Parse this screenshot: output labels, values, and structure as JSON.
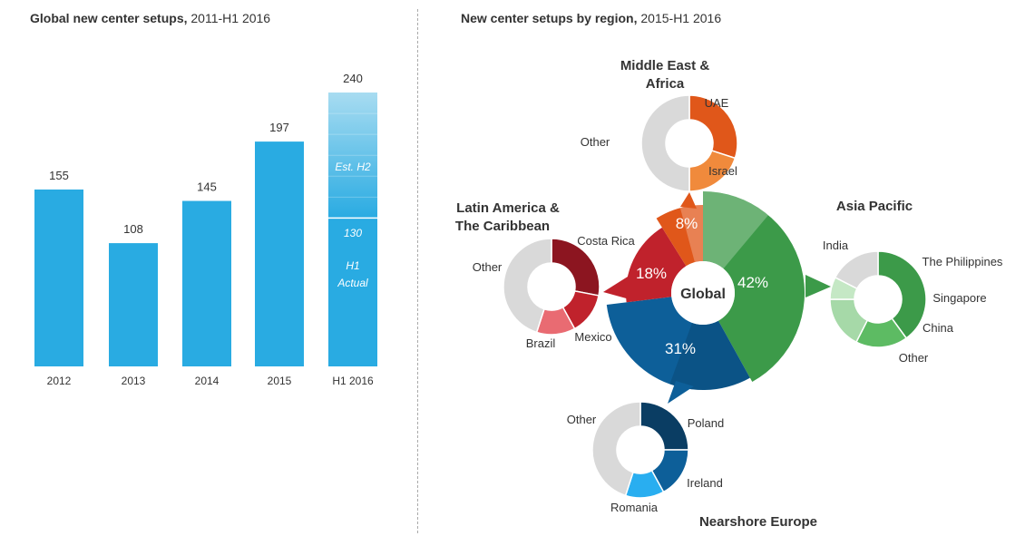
{
  "left_chart": {
    "title_bold": "Global new center setups,",
    "title_rest": " 2011-H1 2016"
  },
  "right_chart": {
    "title_bold": "New center setups by region,",
    "title_rest": " 2015-H1 2016"
  },
  "colors": {
    "bar": "#29abe2",
    "bar_est_light": "#a8dcf1",
    "asia": "#3c9a49",
    "asia_light": "#a6d9a8",
    "europe": "#0d5f99",
    "europe_dark": "#0a3d63",
    "latam": "#c0222c",
    "latam_dark": "#8c1520",
    "mea": "#e0571a",
    "mea_light": "#f08a3c",
    "other_gray": "#d9d9d9"
  },
  "chart_data": [
    {
      "type": "bar",
      "categories": [
        "2012",
        "2013",
        "2014",
        "2015",
        "H1 2016"
      ],
      "values": [
        155,
        108,
        145,
        197,
        240
      ],
      "stacked_last": [
        {
          "label": "H1 Actual",
          "value": 130
        },
        {
          "label": "Est. H2",
          "value": 110
        }
      ],
      "value_labels": [
        "155",
        "108",
        "145",
        "197",
        "240"
      ],
      "actual_label": "130",
      "est_label": "Est. H2",
      "h1_label_1": "H1",
      "h1_label_2": "Actual",
      "ylim": [
        0,
        260
      ]
    },
    {
      "type": "pie",
      "center_label": "Global",
      "slices": [
        {
          "name": "Asia Pacific",
          "pct": 42,
          "label": "42%"
        },
        {
          "name": "Nearshore Europe",
          "pct": 31,
          "label": "31%"
        },
        {
          "name": "Latin America & The Caribbean",
          "pct": 18,
          "label": "18%"
        },
        {
          "name": "Middle East & Africa",
          "pct": 8,
          "label": "8%"
        }
      ],
      "sub_donuts": {
        "mea": {
          "title_1": "Middle East &",
          "title_2": "Africa",
          "segments": [
            {
              "name": "UAE",
              "value": 0.3
            },
            {
              "name": "Israel",
              "value": 0.2
            },
            {
              "name": "Other",
              "value": 0.5
            }
          ]
        },
        "latam": {
          "title_1": "Latin America &",
          "title_2": "The Caribbean",
          "segments": [
            {
              "name": "Costa Rica",
              "value": 0.28
            },
            {
              "name": "Mexico",
              "value": 0.14
            },
            {
              "name": "Brazil",
              "value": 0.13
            },
            {
              "name": "Other",
              "value": 0.45
            }
          ]
        },
        "asia": {
          "title": "Asia Pacific",
          "segments": [
            {
              "name": "India",
              "value": 0.32
            },
            {
              "name": "The Philippines",
              "value": 0.14
            },
            {
              "name": "Singapore",
              "value": 0.14
            },
            {
              "name": "China",
              "value": 0.06
            },
            {
              "name": "Other",
              "value": 0.14
            }
          ]
        },
        "europe": {
          "title": "Nearshore Europe",
          "segments": [
            {
              "name": "Poland",
              "value": 0.25
            },
            {
              "name": "Ireland",
              "value": 0.17
            },
            {
              "name": "Romania",
              "value": 0.13
            },
            {
              "name": "Other",
              "value": 0.45
            }
          ]
        }
      }
    }
  ]
}
